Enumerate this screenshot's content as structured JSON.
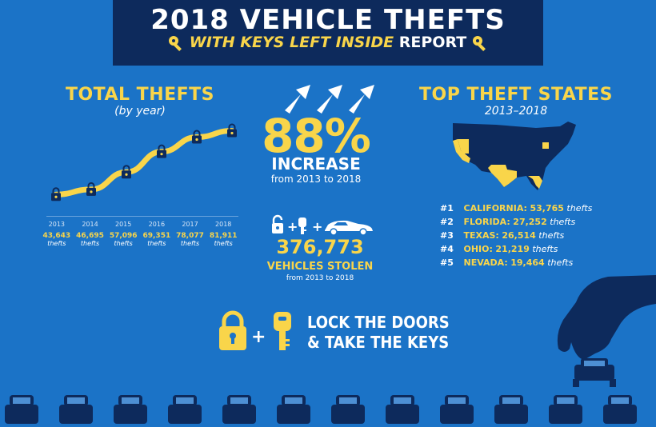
{
  "header": {
    "title": "2018 VEHICLE THEFTS",
    "subtitle_highlight": "WITH KEYS LEFT INSIDE",
    "subtitle_rest": "REPORT"
  },
  "total_thefts": {
    "title": "TOTAL THEFTS",
    "subtitle": "(by year)",
    "unit": "thefts"
  },
  "chart_data": {
    "type": "line",
    "title": "TOTAL THEFTS",
    "subtitle": "(by year)",
    "categories": [
      "2013",
      "2014",
      "2015",
      "2016",
      "2017",
      "2018"
    ],
    "values": [
      43643,
      46695,
      57096,
      69351,
      78077,
      81911
    ],
    "value_labels": [
      "43,643",
      "46,695",
      "57,096",
      "69,351",
      "78,077",
      "81,911"
    ],
    "ylim": [
      38000,
      86000
    ],
    "grid": false,
    "marker": "padlock-icon",
    "colors": {
      "line": "#f9d54a",
      "marker": "#0d2a5c"
    }
  },
  "increase": {
    "percent": "88%",
    "label": "INCREASE",
    "sub": "from 2013 to 2018"
  },
  "stolen": {
    "total": "376,773",
    "label": "VEHICLES STOLEN",
    "sub": "from 2013 to 2018",
    "equation_icons": [
      "unlocked-padlock-icon",
      "key-fob-icon",
      "car-icon"
    ]
  },
  "top_states": {
    "title": "TOP THEFT STATES",
    "subtitle": "2013–2018",
    "items": [
      {
        "rank": "#1",
        "state": "CALIFORNIA:",
        "count": "53,765",
        "unit": "thefts"
      },
      {
        "rank": "#2",
        "state": "FLORIDA:",
        "count": "27,252",
        "unit": "thefts"
      },
      {
        "rank": "#3",
        "state": "TEXAS:",
        "count": "26,514",
        "unit": "thefts"
      },
      {
        "rank": "#4",
        "state": "OHIO:",
        "count": "21,219",
        "unit": "thefts"
      },
      {
        "rank": "#5",
        "state": "NEVADA:",
        "count": "19,464",
        "unit": "thefts"
      }
    ]
  },
  "cta": {
    "line1": "LOCK THE DOORS",
    "line2": "& TAKE THE KEYS"
  },
  "colors": {
    "background": "#1b73c7",
    "navy": "#0d2a5c",
    "accent_yellow": "#f9d54a"
  }
}
